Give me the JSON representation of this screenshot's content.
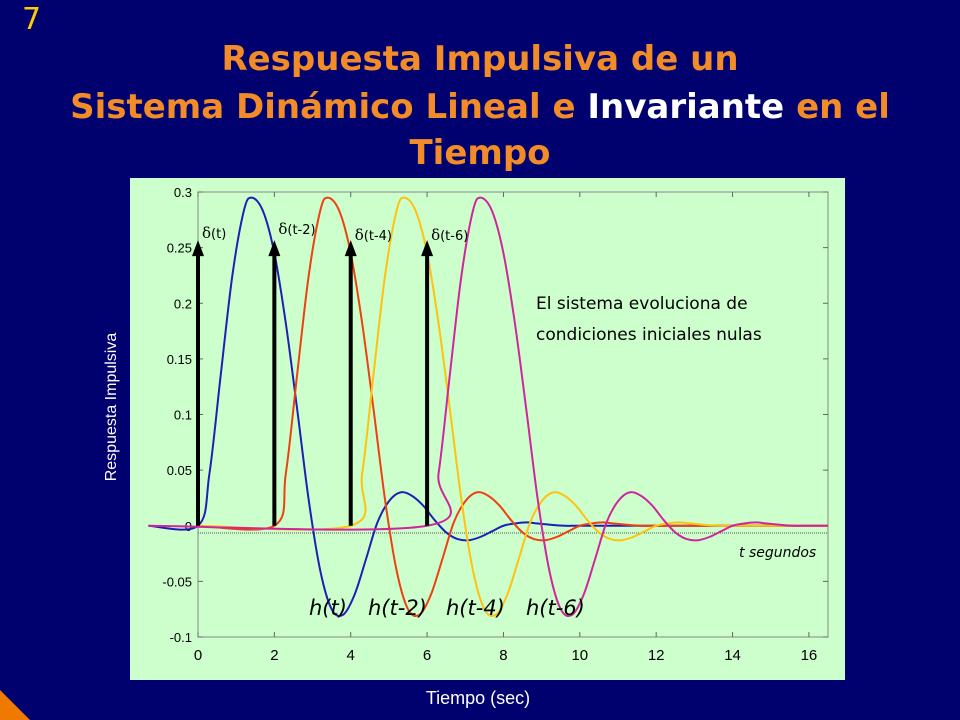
{
  "slide": {
    "number": "7",
    "title_line1": "Respuesta Impulsiva de un",
    "title_line2_a": "Sistema Dinámico Lineal e ",
    "title_line2_b": "Invariante",
    "title_line2_c": " en el Tiempo"
  },
  "colors": {
    "background": "#00006e",
    "title": "#f28c28",
    "highlight": "#ffffff",
    "plot_bg": "#ccffcc"
  },
  "chart_data": {
    "type": "line",
    "xlabel": "Tiempo (sec)",
    "ylabel": "Respuesta Impulsiva",
    "xlim": [
      0,
      16.5
    ],
    "ylim": [
      -0.1,
      0.3
    ],
    "xticks": [
      "0",
      "2",
      "4",
      "6",
      "8",
      "10",
      "12",
      "14",
      "16"
    ],
    "yticks": [
      "-0.1",
      "-0.05",
      "0",
      "0.05",
      "0.1",
      "0.15",
      "0.2",
      "0.25",
      "0.3"
    ],
    "grid": false,
    "series": [
      {
        "name": "h(t)",
        "color": "#1f1fb4",
        "shift": 0,
        "x": [
          -1.3,
          0,
          0.3,
          0.6,
          0.9,
          1.2,
          1.4,
          1.7,
          2.0,
          2.3,
          2.6,
          2.9,
          3.2,
          3.5,
          3.8,
          4.1,
          4.4,
          4.7,
          5.0,
          5.3,
          5.6,
          5.9,
          6.2,
          6.5,
          6.8,
          7.1,
          7.4,
          7.7,
          8.0,
          8.3,
          8.6,
          8.9,
          9.2,
          9.6,
          10,
          11,
          12,
          13,
          14,
          15,
          16.5
        ],
        "y": [
          0,
          0,
          0.047,
          0.137,
          0.225,
          0.283,
          0.295,
          0.283,
          0.245,
          0.182,
          0.104,
          0.023,
          -0.04,
          -0.075,
          -0.08,
          -0.062,
          -0.03,
          0.003,
          0.022,
          0.03,
          0.027,
          0.018,
          0.005,
          -0.006,
          -0.012,
          -0.013,
          -0.01,
          -0.005,
          0,
          0.002,
          0.003,
          0.002,
          0.001,
          0,
          0,
          0,
          0,
          0,
          0,
          0,
          0
        ]
      },
      {
        "name": "h(t-2)",
        "color": "#ee4010",
        "shift": 2,
        "x": [
          0,
          2,
          2.3,
          2.6,
          2.9,
          3.2,
          3.4,
          3.7,
          4.0,
          4.3,
          4.6,
          4.9,
          5.2,
          5.5,
          5.8,
          6.1,
          6.4,
          6.7,
          7.0,
          7.3,
          7.6,
          7.9,
          8.2,
          8.5,
          8.8,
          9.1,
          9.4,
          9.7,
          10,
          10.3,
          10.6,
          10.9,
          11.2,
          11.6,
          12,
          13,
          14,
          15,
          16.5
        ],
        "y": [
          0,
          0,
          0.047,
          0.137,
          0.225,
          0.283,
          0.295,
          0.283,
          0.245,
          0.182,
          0.104,
          0.023,
          -0.04,
          -0.075,
          -0.08,
          -0.062,
          -0.03,
          0.003,
          0.022,
          0.03,
          0.027,
          0.018,
          0.005,
          -0.006,
          -0.012,
          -0.013,
          -0.01,
          -0.005,
          0,
          0.002,
          0.003,
          0.002,
          0.001,
          0,
          0,
          0,
          0,
          0,
          0
        ]
      },
      {
        "name": "h(t-4)",
        "color": "#ffc20e",
        "shift": 4,
        "x": [
          0,
          4,
          4.3,
          4.6,
          4.9,
          5.2,
          5.4,
          5.7,
          6.0,
          6.3,
          6.6,
          6.9,
          7.2,
          7.5,
          7.8,
          8.1,
          8.4,
          8.7,
          9.0,
          9.3,
          9.6,
          9.9,
          10.2,
          10.5,
          10.8,
          11.1,
          11.4,
          11.7,
          12,
          12.3,
          12.6,
          12.9,
          13.2,
          13.6,
          14,
          15,
          16.5
        ],
        "y": [
          0,
          0,
          0.047,
          0.137,
          0.225,
          0.283,
          0.295,
          0.283,
          0.245,
          0.182,
          0.104,
          0.023,
          -0.04,
          -0.075,
          -0.08,
          -0.062,
          -0.03,
          0.003,
          0.022,
          0.03,
          0.027,
          0.018,
          0.005,
          -0.006,
          -0.012,
          -0.013,
          -0.01,
          -0.005,
          0,
          0.002,
          0.003,
          0.002,
          0.001,
          0,
          0,
          0,
          0
        ]
      },
      {
        "name": "h(t-6)",
        "color": "#d0269c",
        "shift": 6,
        "x": [
          -1.3,
          6,
          6.3,
          6.6,
          6.9,
          7.2,
          7.4,
          7.7,
          8.0,
          8.3,
          8.6,
          8.9,
          9.2,
          9.5,
          9.8,
          10.1,
          10.4,
          10.7,
          11.0,
          11.3,
          11.6,
          11.9,
          12.2,
          12.5,
          12.8,
          13.1,
          13.4,
          13.7,
          14,
          14.3,
          14.6,
          14.9,
          15.2,
          15.6,
          16,
          16.5
        ],
        "y": [
          0,
          0,
          0.047,
          0.137,
          0.225,
          0.283,
          0.295,
          0.283,
          0.245,
          0.182,
          0.104,
          0.023,
          -0.04,
          -0.075,
          -0.08,
          -0.062,
          -0.03,
          0.003,
          0.022,
          0.03,
          0.027,
          0.018,
          0.005,
          -0.006,
          -0.012,
          -0.013,
          -0.01,
          -0.005,
          0,
          0.002,
          0.003,
          0.002,
          0.001,
          0,
          0,
          0
        ]
      }
    ],
    "impulses": [
      {
        "label": "(t)",
        "x": 0
      },
      {
        "label": "(t-2)",
        "x": 2
      },
      {
        "label": "(t-4)",
        "x": 4
      },
      {
        "label": "(t-6)",
        "x": 6
      }
    ],
    "delta_symbol": "δ",
    "impulse_height": 0.255,
    "curve_labels": [
      "h(t)",
      "h(t-2)",
      "h(t-4)",
      "h(t-6)"
    ],
    "annotations": {
      "text_line1": "El sistema evoluciona de",
      "text_line2": "condiciones iniciales nulas",
      "t_unit": "t segundos"
    }
  }
}
